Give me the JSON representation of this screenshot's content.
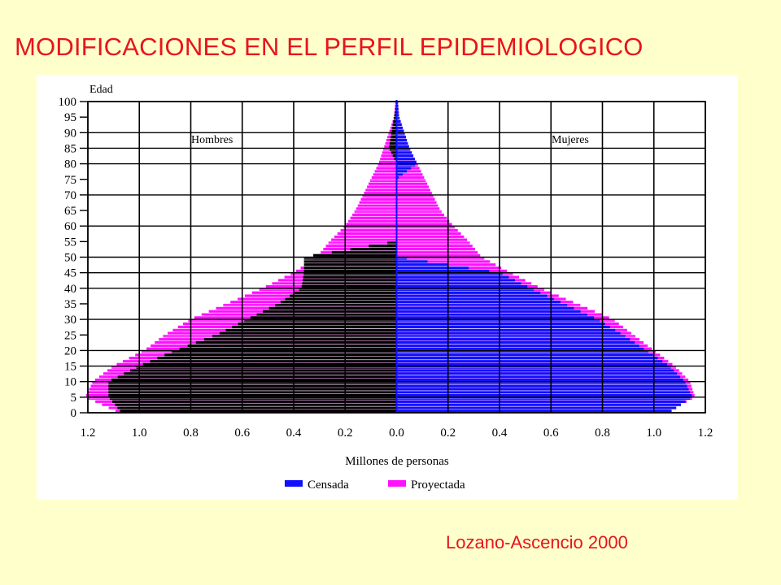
{
  "title": "MODIFICACIONES EN EL PERFIL EPIDEMIOLOGICO",
  "credit": "Lozano-Ascencio 2000",
  "colors": {
    "censada": "#1010ff",
    "proyectada": "#ff10ff",
    "hombres_censada": "#000000",
    "title": "#e8141c"
  },
  "chart_data": {
    "type": "bar",
    "orientation": "horizontal-pyramid",
    "ylabel": "Edad",
    "xlabel": "Millones de personas",
    "left_label": "Hombres",
    "right_label": "Mujeres",
    "xlim": [
      -1.2,
      1.2
    ],
    "ylim": [
      0,
      100
    ],
    "x_ticks": [
      -1.2,
      -1.0,
      -0.8,
      -0.6,
      -0.4,
      -0.2,
      0.0,
      0.2,
      0.4,
      0.6,
      0.8,
      1.0,
      1.2
    ],
    "x_tick_labels": [
      "1.2",
      "1.0",
      "0.8",
      "0.6",
      "0.4",
      "0.2",
      "0.0",
      "0.2",
      "0.4",
      "0.6",
      "0.8",
      "1.0",
      "1.2"
    ],
    "y_ticks": [
      0,
      5,
      10,
      15,
      20,
      25,
      30,
      35,
      40,
      45,
      50,
      55,
      60,
      65,
      70,
      75,
      80,
      85,
      90,
      95,
      100
    ],
    "y_tick_labels": [
      "0",
      "5",
      "10",
      "15",
      "20",
      "25",
      "30",
      "35",
      "40",
      "45",
      "50",
      "55",
      "60",
      "65",
      "70",
      "75",
      "80",
      "85",
      "90",
      "95",
      "100"
    ],
    "legend": [
      {
        "name": "Censada",
        "color": "#1010ff"
      },
      {
        "name": "Proyectada",
        "color": "#ff10ff"
      }
    ],
    "legend_position": "bottom",
    "grid": true,
    "ages": [
      0,
      5,
      10,
      15,
      20,
      25,
      30,
      35,
      40,
      45,
      50,
      55,
      60,
      65,
      70,
      75,
      80,
      85,
      90,
      95,
      100
    ],
    "series": [
      {
        "name": "Hombres Proyectada",
        "values": [
          1.08,
          1.21,
          1.18,
          1.1,
          0.98,
          0.9,
          0.8,
          0.66,
          0.52,
          0.4,
          0.31,
          0.26,
          0.2,
          0.16,
          0.13,
          0.1,
          0.07,
          0.05,
          0.03,
          0.01,
          0.005
        ]
      },
      {
        "name": "Hombres Censada",
        "values": [
          1.07,
          1.12,
          1.12,
          1.0,
          0.86,
          0.7,
          0.58,
          0.46,
          0.37,
          0.36,
          0.36,
          0,
          0,
          0,
          0,
          0,
          0,
          0.03,
          0.02,
          0.01,
          0
        ]
      },
      {
        "name": "Mujeres Proyectada",
        "values": [
          1.05,
          1.16,
          1.14,
          1.08,
          1.0,
          0.92,
          0.84,
          0.7,
          0.56,
          0.44,
          0.33,
          0.28,
          0.22,
          0.17,
          0.14,
          0.11,
          0.08,
          0.05,
          0.03,
          0.01,
          0.005
        ]
      },
      {
        "name": "Mujeres Censada",
        "values": [
          1.06,
          1.15,
          1.12,
          1.06,
          0.97,
          0.88,
          0.78,
          0.65,
          0.52,
          0.4,
          0,
          0,
          0,
          0,
          0,
          0,
          0.08,
          0.05,
          0.03,
          0.01,
          0.005
        ]
      }
    ]
  }
}
